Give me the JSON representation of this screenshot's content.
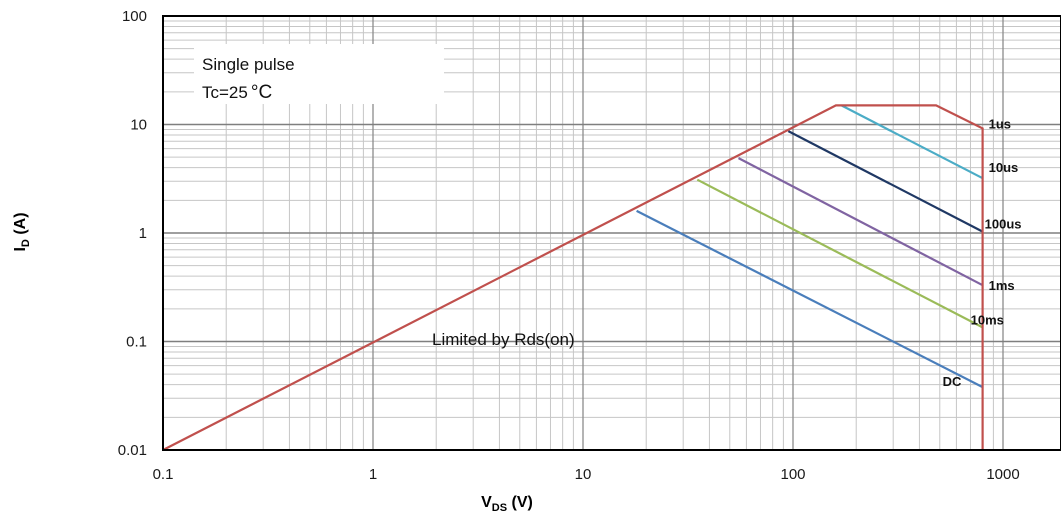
{
  "chart_data": {
    "type": "line",
    "xscale": "log",
    "yscale": "log",
    "xlim": [
      0.1,
      1000
    ],
    "ylim": [
      0.01,
      100
    ],
    "grid": true,
    "x_ticks": [
      "0.1",
      "1",
      "10",
      "100",
      "1000"
    ],
    "y_ticks": [
      "0.01",
      "0.1",
      "1",
      "10",
      "100"
    ],
    "xlabel": {
      "main": "V",
      "sub": "DS",
      "suffix": " (V)"
    },
    "ylabel": {
      "main": "I",
      "sub": "D",
      "suffix": " (A)"
    },
    "annotations": {
      "pulse_line1": "Single pulse",
      "pulse_line2": "Tc=25",
      "pulse_unit": "°C",
      "limit": "Limited by Rds(on)"
    },
    "series": [
      {
        "name": "DC",
        "color": "#4a7ebb",
        "x": [
          18,
          800
        ],
        "y": [
          1.6,
          0.038
        ]
      },
      {
        "name": "10ms",
        "color": "#9bbb59",
        "x": [
          35,
          800
        ],
        "y": [
          3.1,
          0.135
        ]
      },
      {
        "name": "1ms",
        "color": "#8064a2",
        "x": [
          55,
          800
        ],
        "y": [
          4.9,
          0.33
        ]
      },
      {
        "name": "100us",
        "color": "#1f3864",
        "x": [
          95,
          800
        ],
        "y": [
          8.7,
          1.03
        ]
      },
      {
        "name": "10us",
        "color": "#4bacc6",
        "x": [
          170,
          800
        ],
        "y": [
          15,
          3.2
        ]
      },
      {
        "name": "1us",
        "color": "#c0504d",
        "x": [
          0.1,
          160,
          480,
          800,
          800
        ],
        "y": [
          0.01,
          15,
          15,
          9.2,
          0.01
        ]
      }
    ]
  }
}
